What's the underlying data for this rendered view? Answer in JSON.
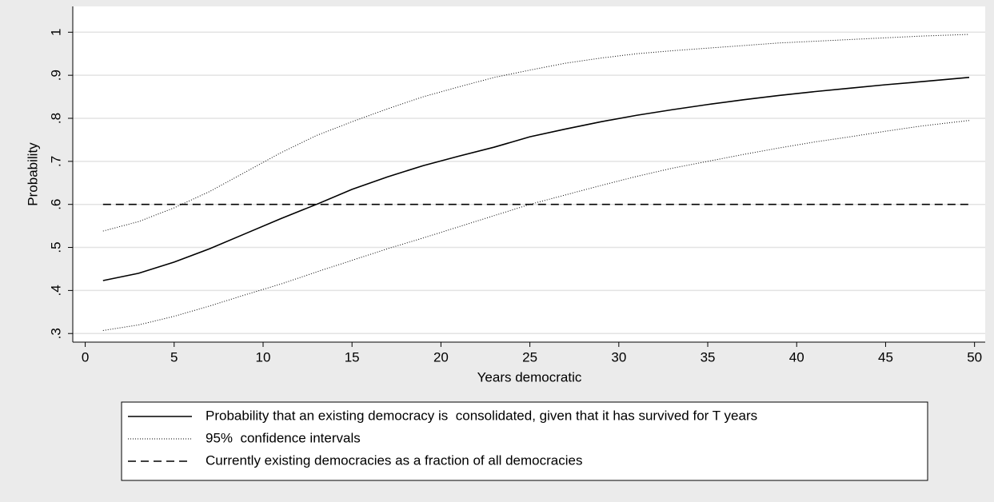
{
  "chart_data": {
    "type": "line",
    "x_label": "Years democratic",
    "y_label": "Probability",
    "x": [
      1,
      3,
      5,
      7,
      9,
      11,
      13,
      15,
      17,
      19,
      21,
      23,
      25,
      27,
      29,
      31,
      33,
      35,
      37,
      39,
      41,
      43,
      45,
      47,
      49.7
    ],
    "series": [
      {
        "name": "Probability that an existing democracy is  consolidated, given that it has survived for T years",
        "color": "#000000",
        "style": "solid",
        "values": [
          0.423,
          0.44,
          0.466,
          0.497,
          0.532,
          0.567,
          0.6,
          0.635,
          0.664,
          0.69,
          0.712,
          0.733,
          0.757,
          0.775,
          0.792,
          0.807,
          0.82,
          0.832,
          0.843,
          0.853,
          0.862,
          0.87,
          0.878,
          0.885,
          0.895
        ]
      },
      {
        "name": "95%  confidence intervals",
        "color": "#000000",
        "style": "dotted",
        "values": [
          0.538,
          0.56,
          0.592,
          0.63,
          0.675,
          0.72,
          0.76,
          0.792,
          0.822,
          0.85,
          0.873,
          0.895,
          0.912,
          0.928,
          0.94,
          0.95,
          0.957,
          0.963,
          0.969,
          0.975,
          0.979,
          0.983,
          0.987,
          0.991,
          0.995
        ]
      },
      {
        "color": "#000000",
        "style": "dotted",
        "values": [
          0.307,
          0.32,
          0.34,
          0.364,
          0.39,
          0.415,
          0.443,
          0.47,
          0.497,
          0.522,
          0.548,
          0.574,
          0.6,
          0.622,
          0.644,
          0.665,
          0.684,
          0.7,
          0.716,
          0.731,
          0.745,
          0.757,
          0.77,
          0.782,
          0.795
        ]
      },
      {
        "name": "Currently existing democracies as a fraction of all democracies",
        "color": "#000000",
        "style": "dashed",
        "values": [
          0.6,
          0.6,
          0.6,
          0.6,
          0.6,
          0.6,
          0.6,
          0.6,
          0.6,
          0.6,
          0.6,
          0.6,
          0.6,
          0.6,
          0.6,
          0.6,
          0.6,
          0.6,
          0.6,
          0.6,
          0.6,
          0.6,
          0.6,
          0.6,
          0.6
        ]
      }
    ],
    "xlim": [
      -0.7,
      50.6
    ],
    "ylim": [
      0.28,
      1.06
    ],
    "xticks": [
      0,
      5,
      10,
      15,
      20,
      25,
      30,
      35,
      40,
      45,
      50
    ],
    "yticks": [
      {
        "value": 0.3,
        "label": ".3"
      },
      {
        "value": 0.4,
        "label": ".4"
      },
      {
        "value": 0.5,
        "label": ".5"
      },
      {
        "value": 0.6,
        "label": ".6"
      },
      {
        "value": 0.7,
        "label": ".7"
      },
      {
        "value": 0.8,
        "label": ".8"
      },
      {
        "value": 0.9,
        "label": ".9"
      },
      1
    ],
    "grid": true,
    "legend": "bottom"
  }
}
